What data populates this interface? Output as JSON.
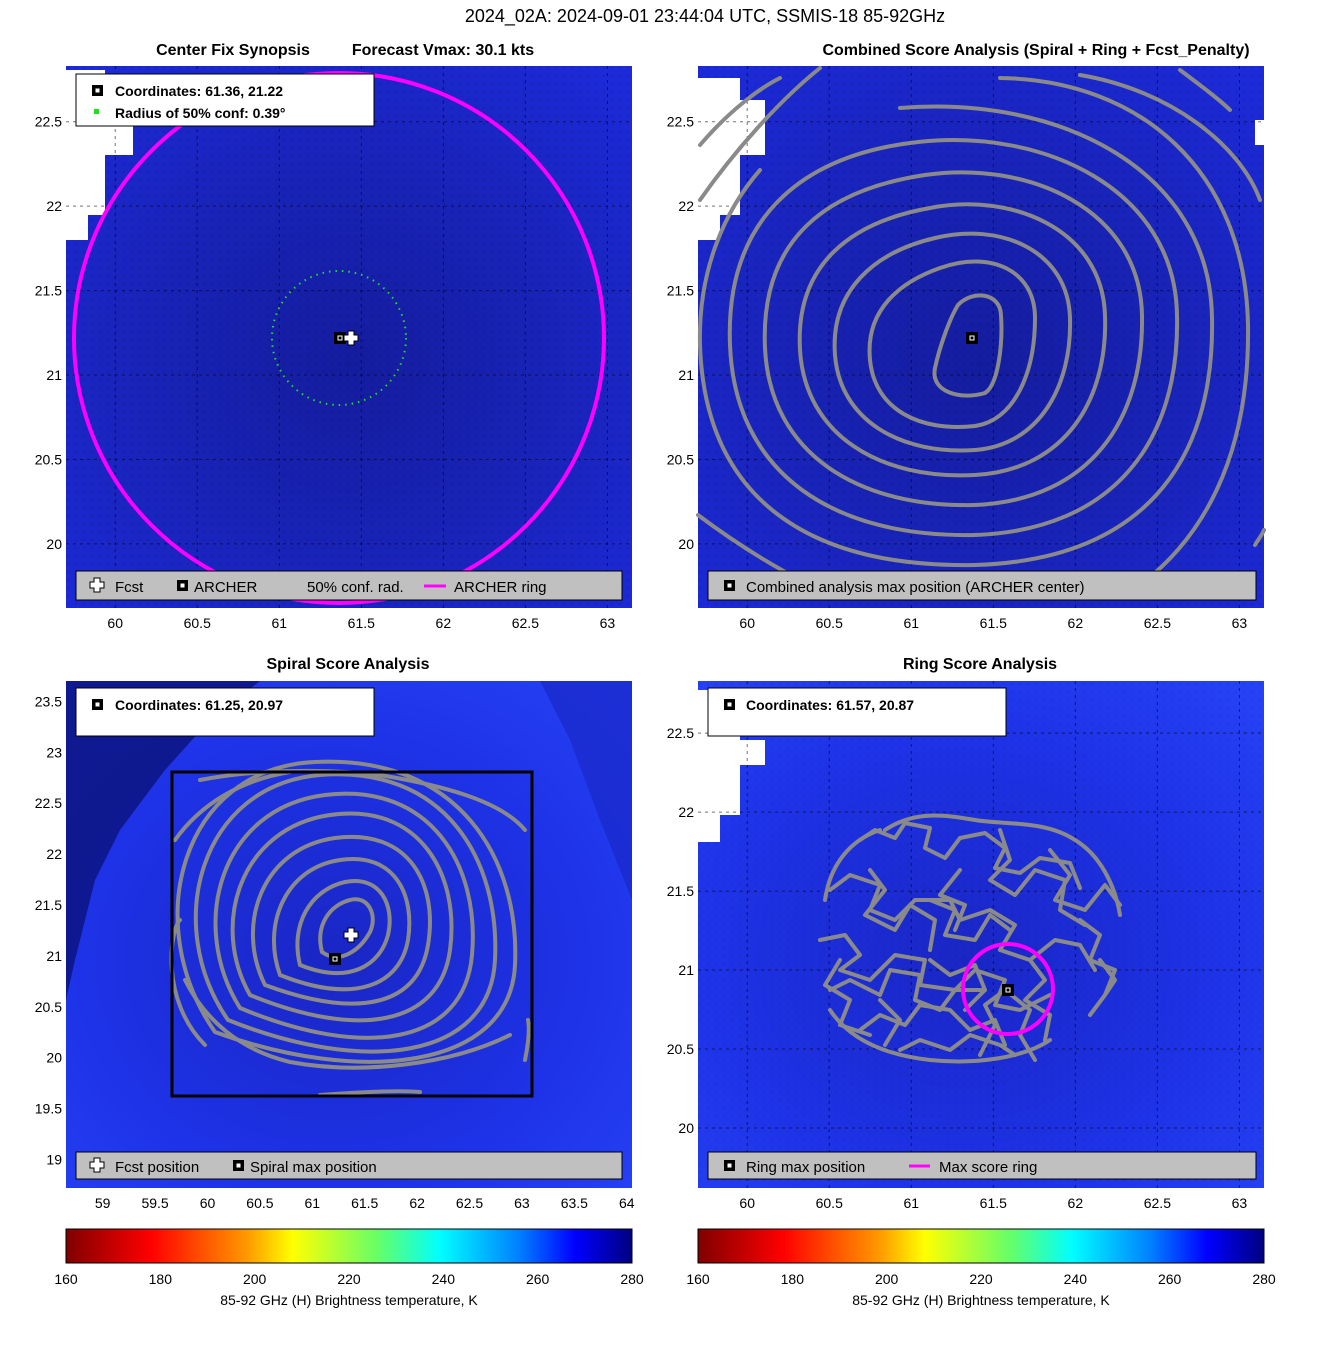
{
  "figure": {
    "title": "2024_02A: 2024-09-01 23:44:04 UTC, SSMIS-18 85-92GHz"
  },
  "colors": {
    "field_light": "#1e2df0",
    "field_mid": "#1a23c0",
    "field_dark": "#101690",
    "contour": "#8a8a8a",
    "ring": "#ff00ff",
    "conf": "#22dd22",
    "legend_bg": "#c0c0c0",
    "land": "#ffffff"
  },
  "colorbar": {
    "label": "85-92 GHz (H) Brightness temperature, K",
    "ticks": [
      "160",
      "180",
      "200",
      "220",
      "240",
      "260",
      "280"
    ],
    "min": 160,
    "max": 280,
    "stops": [
      {
        "t": 0.0,
        "c": "#7f0000"
      },
      {
        "t": 0.15,
        "c": "#ff0000"
      },
      {
        "t": 0.32,
        "c": "#ff9900"
      },
      {
        "t": 0.4,
        "c": "#ffff00"
      },
      {
        "t": 0.55,
        "c": "#66ff66"
      },
      {
        "t": 0.66,
        "c": "#00ffff"
      },
      {
        "t": 0.8,
        "c": "#0080ff"
      },
      {
        "t": 0.9,
        "c": "#0000ff"
      },
      {
        "t": 1.0,
        "c": "#00007f"
      }
    ]
  },
  "chart_data": [
    {
      "type": "heatmap",
      "title_left": "Center Fix Synopsis",
      "title_right": "Forecast Vmax: 30.1 kts",
      "xlim": [
        59.7,
        63.15
      ],
      "ylim": [
        19.62,
        22.83
      ],
      "xticks": [
        "60",
        "60.5",
        "61",
        "61.5",
        "62",
        "62.5",
        "63"
      ],
      "yticks": [
        "20",
        "20.5",
        "21",
        "21.5",
        "22",
        "22.5"
      ],
      "info": [
        "Coordinates: 61.36, 21.22",
        "Radius of 50% conf: 0.39°"
      ],
      "legend": [
        "Fcst",
        "ARCHER",
        "50% conf. rad.",
        "ARCHER ring"
      ],
      "archer_center": [
        61.36,
        21.22
      ],
      "fcst": [
        61.42,
        21.22
      ],
      "conf_radius_deg": 0.39,
      "ring_radius_deg": 1.55
    },
    {
      "type": "heatmap",
      "title": "Combined Score Analysis (Spiral + Ring + Fcst_Penalty)",
      "xlim": [
        59.7,
        63.15
      ],
      "ylim": [
        19.62,
        22.83
      ],
      "xticks": [
        "60",
        "60.5",
        "61",
        "61.5",
        "62",
        "62.5",
        "63"
      ],
      "yticks": [
        "20",
        "20.5",
        "21",
        "21.5",
        "22",
        "22.5"
      ],
      "legend": [
        "Combined analysis max position (ARCHER center)"
      ],
      "max_position": [
        61.36,
        21.22
      ]
    },
    {
      "type": "heatmap",
      "title": "Spiral Score Analysis",
      "xlim": [
        58.65,
        64.05
      ],
      "ylim": [
        18.72,
        23.7
      ],
      "xticks": [
        "59",
        "59.5",
        "60",
        "60.5",
        "61",
        "61.5",
        "62",
        "62.5",
        "63",
        "63.5",
        "64"
      ],
      "yticks": [
        "19",
        "19.5",
        "20",
        "20.5",
        "21",
        "21.5",
        "22",
        "22.5",
        "23",
        "23.5"
      ],
      "info": [
        "Coordinates: 61.25, 20.97"
      ],
      "legend": [
        "Fcst position",
        "Spiral max position"
      ],
      "max_position": [
        61.25,
        20.97
      ],
      "fcst": [
        61.42,
        21.22
      ],
      "search_box": {
        "x": [
          59.65,
          63.1
        ],
        "y": [
          19.6,
          22.85
        ]
      }
    },
    {
      "type": "heatmap",
      "title": "Ring Score Analysis",
      "xlim": [
        59.7,
        63.15
      ],
      "ylim": [
        19.62,
        22.83
      ],
      "xticks": [
        "60",
        "60.5",
        "61",
        "61.5",
        "62",
        "62.5",
        "63"
      ],
      "yticks": [
        "20",
        "20.5",
        "21",
        "21.5",
        "22",
        "22.5"
      ],
      "info": [
        "Coordinates: 61.57, 20.87"
      ],
      "legend": [
        "Ring max position",
        "Max score ring"
      ],
      "max_position": [
        61.57,
        20.87
      ],
      "ring_radius_deg": 0.28
    }
  ]
}
